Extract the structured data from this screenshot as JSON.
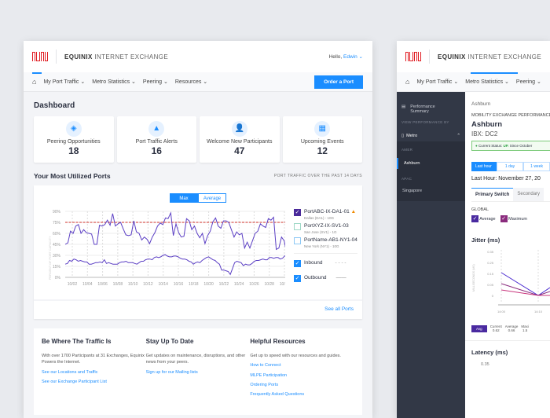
{
  "app": {
    "brand_bold": "EQUINIX",
    "brand_rest": " INTERNET EXCHANGE",
    "greeting": "Hello,",
    "user": "Edwin",
    "accent": "#1a8dff",
    "logo_color": "#e0191f"
  },
  "nav": {
    "items": [
      "My Port Traffic",
      "Metro Statistics",
      "Peering",
      "Resources"
    ],
    "order_button": "Order a Port"
  },
  "dashboard": {
    "title": "Dashboard",
    "cards": [
      {
        "icon": "peering-icon",
        "label": "Peering Opportunities",
        "value": "18"
      },
      {
        "icon": "alert-icon",
        "label": "Port Traffic Alerts",
        "value": "16"
      },
      {
        "icon": "add-user-icon",
        "label": "Welcome New Participants",
        "value": "47"
      },
      {
        "icon": "calendar-icon",
        "label": "Upcoming Events",
        "value": "12"
      }
    ]
  },
  "ports": {
    "title": "Your Most Utilized Ports",
    "subtitle": "PORT TRAFFIC OVER THE PAST 14 DAYS",
    "toggle": [
      "Max",
      "Average"
    ],
    "see_all": "See all Ports",
    "legend": [
      {
        "name": "PortABC-IX-DA1-01",
        "sub": "Dallas (DA1) - 10G",
        "checked": true,
        "warning": true
      },
      {
        "name": "PortXYZ-IX-SV1-03",
        "sub": "San Jose (SV1) - 1G",
        "checked": false
      },
      {
        "name": "PortName-AB1-NY1-04",
        "sub": "New York (NY1) - 10G",
        "checked": false
      }
    ],
    "inbound": "Inbound",
    "outbound": "Outbound"
  },
  "chart_data": {
    "type": "line",
    "ylabel": "PERCENT OF PORT CAPACITY",
    "yticks": [
      "0%",
      "15%",
      "30%",
      "45%",
      "60%",
      "75%",
      "90%"
    ],
    "ylim": [
      0,
      90
    ],
    "threshold": 75,
    "xticks": [
      "10/02",
      "10/04",
      "10/06",
      "10/08",
      "10/10",
      "10/12",
      "10/14",
      "10/16",
      "10/18",
      "10/20",
      "10/22",
      "10/24",
      "10/26",
      "10/28",
      "10/30"
    ],
    "grid": true,
    "series": [
      {
        "color": "#5b3fc4",
        "values": [
          45,
          47,
          63,
          60,
          70,
          72,
          60,
          65,
          61,
          60,
          59,
          45,
          45,
          71,
          70,
          72,
          78,
          71,
          87,
          70,
          73,
          75,
          66,
          58,
          57,
          58,
          77,
          62,
          60,
          51,
          55,
          52,
          46,
          55,
          61,
          70,
          74,
          72,
          81,
          80,
          88,
          57,
          73,
          61,
          55,
          56,
          80,
          77,
          65,
          70,
          60,
          54,
          60,
          46,
          57,
          63,
          76,
          81,
          70,
          67,
          77,
          77,
          75,
          65,
          55,
          62,
          58,
          60,
          40,
          48,
          40,
          50,
          60,
          63,
          73,
          70,
          68,
          80,
          78,
          82,
          38,
          40,
          55,
          50,
          33
        ]
      },
      {
        "color": "#5b3fc4",
        "values": [
          18,
          19,
          23,
          22,
          25,
          24,
          22,
          23,
          22,
          21,
          21,
          18,
          18,
          19,
          20,
          20,
          21,
          20,
          24,
          19,
          20,
          19,
          18,
          18,
          18,
          20,
          21,
          21,
          22,
          20,
          20,
          20,
          19,
          18,
          20,
          22,
          22,
          24,
          25,
          25,
          24,
          27,
          28,
          27,
          28,
          30,
          31,
          29,
          28,
          28,
          29,
          29,
          28,
          26,
          25,
          25,
          24,
          22,
          21,
          18,
          20,
          21,
          20,
          23,
          25,
          27,
          28,
          26,
          24,
          23,
          20,
          18,
          10,
          10,
          9,
          8,
          4,
          12,
          20,
          22,
          21,
          20,
          16,
          18,
          17,
          17,
          19,
          22,
          23,
          23,
          24,
          25,
          24,
          24,
          27,
          27,
          26,
          27,
          27,
          25,
          26,
          29,
          30
        ]
      }
    ]
  },
  "info": [
    {
      "title": "Be Where The Traffic Is",
      "text": "With over 1700 Participants at 31 Exchanges, Equinix Powers the Internet.",
      "links": [
        "See our Locations and Traffic",
        "See our Exchange Participant List"
      ]
    },
    {
      "title": "Stay Up To Date",
      "text": "Get updates on maintenance, disruptions, and other news from your peers.",
      "links": [
        "Sign up for our Mailing lists"
      ]
    },
    {
      "title": "Helpful Resources",
      "text": "Get up to speed with our resources and guides.",
      "links": [
        "How to Connect",
        "MLPE Participation",
        "Ordering Ports",
        "Frequently Asked Questions"
      ]
    }
  ],
  "second": {
    "sidebar": {
      "summary": "Performance Summary",
      "view_by": "VIEW PERFORMANCE BY",
      "metro": "Metro",
      "amer": "AMER",
      "ashburn": "Ashburn",
      "apac": "APAC",
      "singapore": "Singapore"
    },
    "breadcrumb": "Ashburn",
    "section": "MOBILITY EXCHANGE PERFORMANCE",
    "city": "Ashburn",
    "ibx": "IBX: DC2",
    "status_label": "Current Status:",
    "status": "UP.",
    "status_since": "Since October",
    "ranges": [
      "Last hour",
      "1 day",
      "1 week"
    ],
    "last_hour": "Last Hour: November 27, 20",
    "tabs": [
      "Primary Switch",
      "Secondary"
    ],
    "global": "GLOBAL",
    "avg_label": "Average",
    "max_label": "Maximum",
    "jitter": "Jitter (ms)",
    "jitter_ylabel": "MILLISECONDS (MS)",
    "jitter_yticks": [
      "0.35",
      "0.25",
      "0.15",
      "0.05",
      "0"
    ],
    "jitter_xticks": [
      "14:00",
      "14:10"
    ],
    "stats": {
      "badge": "Avg",
      "current_label": "Current",
      "current": "0.62",
      "average_label": "Average",
      "average": "0.66",
      "max_label": "Maxi",
      "max": "1.5"
    },
    "latency": "Latency (ms)",
    "latency_ytick": "0.35"
  }
}
